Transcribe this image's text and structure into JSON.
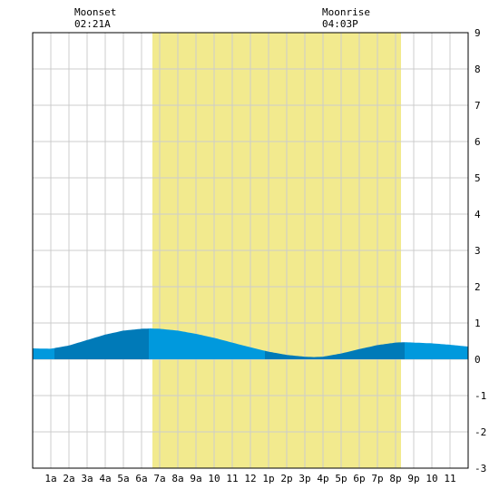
{
  "moon": {
    "moonset_label": "Moonset",
    "moonset_time": "02:21A",
    "moonrise_label": "Moonrise",
    "moonrise_time": "04:03P"
  },
  "chart_data": {
    "type": "area",
    "x_tick_labels": [
      "1a",
      "2a",
      "3a",
      "4a",
      "5a",
      "6a",
      "7a",
      "8a",
      "9a",
      "10",
      "11",
      "12",
      "1p",
      "2p",
      "3p",
      "4p",
      "5p",
      "6p",
      "7p",
      "8p",
      "9p",
      "10",
      "11"
    ],
    "xlim": [
      0,
      24
    ],
    "ylim": [
      -3,
      9
    ],
    "y_ticks": [
      -3,
      -2,
      -1,
      0,
      1,
      2,
      3,
      4,
      5,
      6,
      7,
      8,
      9
    ],
    "daylight_hours": [
      6.6,
      20.3
    ],
    "colors": {
      "daylight": "#f2ea8e",
      "tide_light": "#0099dd",
      "tide_dark": "#007ab8",
      "grid": "#cccccc",
      "border": "#000000",
      "background": "#ffffff"
    },
    "tide": {
      "x": [
        0,
        1,
        2,
        3,
        4,
        5,
        6,
        6.5,
        7,
        8,
        9,
        10,
        11,
        12,
        13,
        14,
        15,
        15.5,
        16,
        17,
        18,
        19,
        20,
        20.5,
        21,
        22,
        23,
        24
      ],
      "y": [
        0.3,
        0.29,
        0.38,
        0.53,
        0.68,
        0.79,
        0.84,
        0.85,
        0.84,
        0.79,
        0.7,
        0.59,
        0.46,
        0.33,
        0.21,
        0.12,
        0.07,
        0.06,
        0.07,
        0.16,
        0.28,
        0.39,
        0.46,
        0.47,
        0.46,
        0.44,
        0.4,
        0.35
      ]
    },
    "tide_bands": [
      {
        "from": 0,
        "to": 1.2,
        "shade": "light"
      },
      {
        "from": 1.2,
        "to": 6.4,
        "shade": "dark"
      },
      {
        "from": 6.4,
        "to": 12.8,
        "shade": "light"
      },
      {
        "from": 12.8,
        "to": 17.2,
        "shade": "dark"
      },
      {
        "from": 17.2,
        "to": 20.5,
        "shade": "dark"
      },
      {
        "from": 20.5,
        "to": 24,
        "shade": "light"
      }
    ]
  }
}
